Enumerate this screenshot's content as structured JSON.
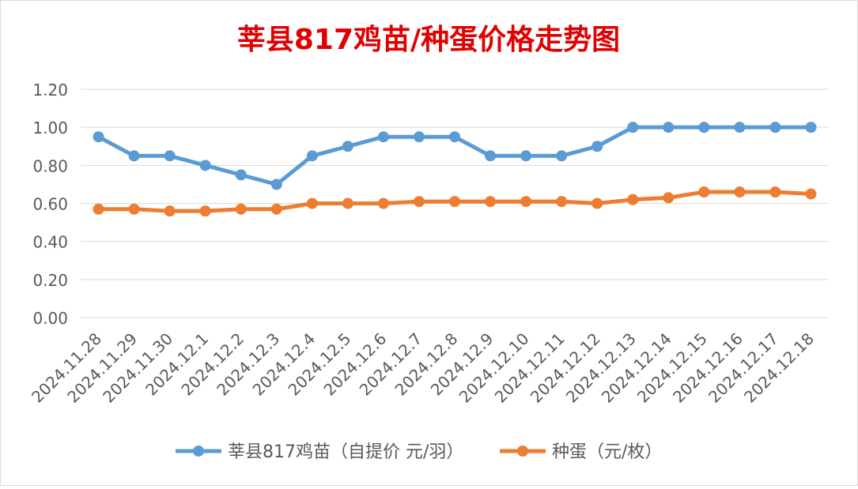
{
  "chart_data": {
    "type": "line",
    "title": "莘县817鸡苗/种蛋价格走势图",
    "xlabel": "",
    "ylabel": "",
    "ylim": [
      0,
      1.2
    ],
    "yticks": [
      "0.00",
      "0.20",
      "0.40",
      "0.60",
      "0.80",
      "1.00",
      "1.20"
    ],
    "grid": true,
    "legend_position": "bottom",
    "categories": [
      "2024.11.28",
      "2024.11.29",
      "2024.11.30",
      "2024.12.1",
      "2024.12.2",
      "2024.12.3",
      "2024.12.4",
      "2024.12.5",
      "2024.12.6",
      "2024.12.7",
      "2024.12.8",
      "2024.12.9",
      "2024.12.10",
      "2024.12.11",
      "2024.12.12",
      "2024.12.13",
      "2024.12.14",
      "2024.12.15",
      "2024.12.16",
      "2024.12.17",
      "2024.12.18"
    ],
    "series": [
      {
        "name": "莘县817鸡苗（自提价 元/羽）",
        "color": "#5B9BD5",
        "values": [
          0.95,
          0.85,
          0.85,
          0.8,
          0.75,
          0.7,
          0.85,
          0.9,
          0.95,
          0.95,
          0.95,
          0.85,
          0.85,
          0.85,
          0.9,
          1.0,
          1.0,
          1.0,
          1.0,
          1.0,
          1.0
        ]
      },
      {
        "name": "种蛋（元/枚）",
        "color": "#ED7D31",
        "values": [
          0.57,
          0.57,
          0.56,
          0.56,
          0.57,
          0.57,
          0.6,
          0.6,
          0.6,
          0.61,
          0.61,
          0.61,
          0.61,
          0.61,
          0.6,
          0.62,
          0.63,
          0.66,
          0.66,
          0.66,
          0.65
        ]
      }
    ],
    "title_color": "#E00000",
    "grid_color": "#D9D9D9",
    "axis_text_color": "#595959"
  }
}
